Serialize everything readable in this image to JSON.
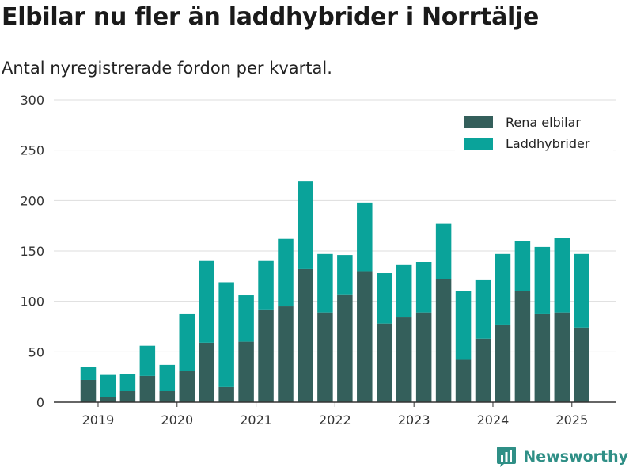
{
  "title": "Elbilar nu fler än laddhybrider i Norrtälje",
  "subtitle": "Antal nyregistrerade fordon per kvartal.",
  "brand": {
    "name": "Newsworthy",
    "icon": "newsworthy-logo-icon"
  },
  "colors": {
    "electric": "#345f5b",
    "hybrid": "#0aa39a",
    "grid": "#dddddd",
    "axis": "#333333"
  },
  "chart_data": {
    "type": "bar",
    "stacked": true,
    "title": "Elbilar nu fler än laddhybrider i Norrtälje",
    "subtitle": "Antal nyregistrerade fordon per kvartal.",
    "xlabel": "",
    "ylabel": "",
    "ylim": [
      0,
      300
    ],
    "yticks": [
      0,
      50,
      100,
      150,
      200,
      250,
      300
    ],
    "x_tick_labels": [
      "2019",
      "2020",
      "2021",
      "2022",
      "2023",
      "2024",
      "2025"
    ],
    "categories": [
      "2019 Q2",
      "2019 Q3",
      "2019 Q4",
      "2020 Q1",
      "2020 Q2",
      "2020 Q3",
      "2020 Q4",
      "2021 Q1",
      "2021 Q2",
      "2021 Q3",
      "2021 Q4",
      "2022 Q1",
      "2022 Q2",
      "2022 Q3",
      "2022 Q4",
      "2023 Q1",
      "2023 Q2",
      "2023 Q3",
      "2023 Q4",
      "2024 Q1",
      "2024 Q2",
      "2024 Q3",
      "2024 Q4",
      "2025 Q1",
      "2025 Q2",
      "2025 Q3"
    ],
    "series": [
      {
        "name": "Rena elbilar",
        "values": [
          22,
          5,
          11,
          26,
          11,
          31,
          59,
          15,
          60,
          92,
          95,
          132,
          89,
          107,
          130,
          78,
          84,
          89,
          122,
          42,
          63,
          77,
          110,
          88,
          89,
          74
        ]
      },
      {
        "name": "Laddhybrider",
        "values": [
          13,
          22,
          17,
          30,
          26,
          57,
          81,
          104,
          46,
          48,
          67,
          87,
          58,
          39,
          68,
          50,
          52,
          50,
          55,
          68,
          58,
          70,
          50,
          66,
          74,
          73
        ]
      }
    ],
    "legend_position": "top-right",
    "grid": true
  }
}
